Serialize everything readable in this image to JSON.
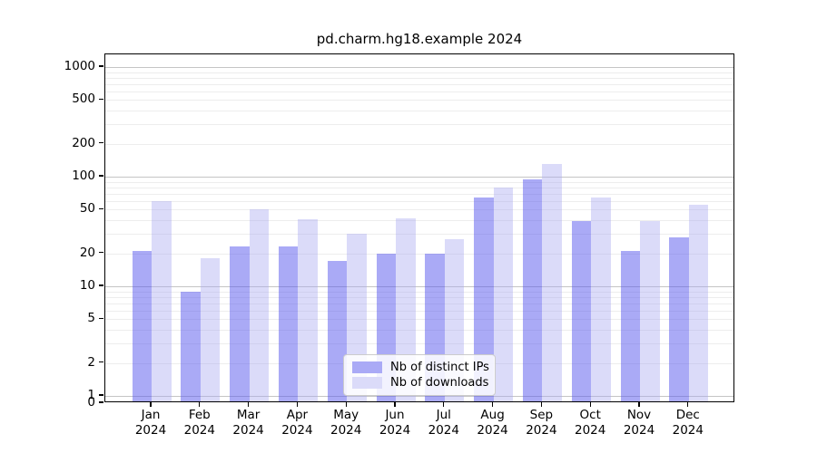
{
  "figure": {
    "background": "#ffffff",
    "axis_color": "#000000",
    "major_grid_color": "#c5c5c5",
    "minor_grid_color": "#ededed"
  },
  "chart_data": {
    "type": "bar",
    "title": "pd.charm.hg18.example 2024",
    "xlabel": "",
    "ylabel": "",
    "scale": "symlog",
    "grid": "on",
    "legend_position": "lower-center",
    "categories": [
      "Jan",
      "Feb",
      "Mar",
      "Apr",
      "May",
      "Jun",
      "Jul",
      "Aug",
      "Sep",
      "Oct",
      "Nov",
      "Dec"
    ],
    "category_year": "2024",
    "y_ticks": [
      0,
      1,
      2,
      5,
      10,
      20,
      50,
      100,
      200,
      500,
      1000
    ],
    "ylim": [
      0,
      1330
    ],
    "series": [
      {
        "name": "Nb of distinct IPs",
        "color": "#aaaaf6",
        "fill": "rgba(85,85,238,0.5)",
        "values": [
          21,
          9,
          23,
          23,
          17,
          20,
          20,
          65,
          95,
          39,
          21,
          28
        ]
      },
      {
        "name": "Nb of downloads",
        "color": "#dbdbf9",
        "fill": "rgba(170,170,240,0.42)",
        "values": [
          60,
          18,
          50,
          41,
          30,
          42,
          27,
          80,
          130,
          64,
          39,
          55
        ]
      }
    ]
  }
}
